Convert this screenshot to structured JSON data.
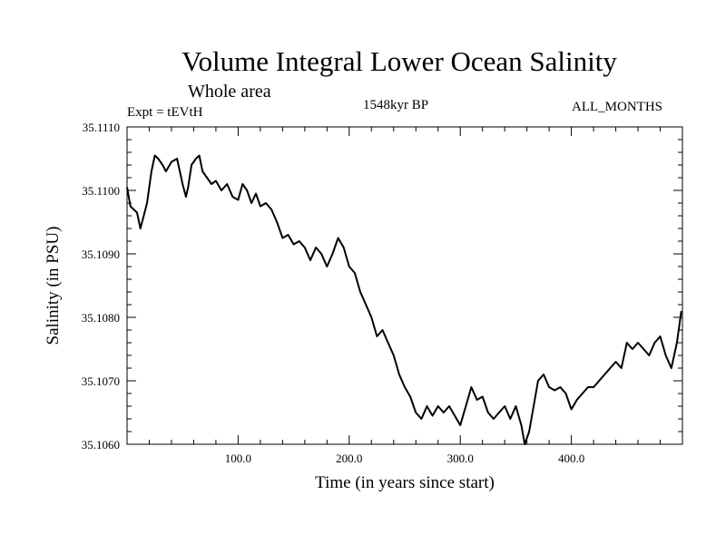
{
  "chart_data": {
    "type": "line",
    "title": "Volume Integral Lower Ocean Salinity",
    "subtitle": "Whole area",
    "experiment_label": "Expt = tEVtH",
    "date_label": "1548kyr BP",
    "period_label": "ALL_MONTHS",
    "xlabel": "Time (in years since start)",
    "ylabel": "Salinity (in PSU)",
    "xlim": [
      0,
      500
    ],
    "ylim": [
      35.106,
      35.111
    ],
    "x_ticks": [
      100,
      200,
      300,
      400
    ],
    "x_tick_labels": [
      "100.0",
      "200.0",
      "300.0",
      "400.0"
    ],
    "y_ticks": [
      35.106,
      35.107,
      35.108,
      35.109,
      35.11,
      35.111
    ],
    "y_tick_labels": [
      "35.1060",
      "35.1070",
      "35.1080",
      "35.1090",
      "35.1100",
      "35.1110"
    ],
    "series": [
      {
        "name": "Salinity",
        "x": [
          0,
          3,
          6,
          9,
          12,
          15,
          18,
          22,
          25,
          28,
          32,
          35,
          40,
          45,
          50,
          53,
          55,
          58,
          62,
          65,
          68,
          72,
          76,
          80,
          85,
          90,
          95,
          100,
          104,
          108,
          112,
          116,
          120,
          125,
          130,
          135,
          140,
          145,
          150,
          155,
          160,
          165,
          170,
          175,
          180,
          185,
          190,
          195,
          200,
          205,
          210,
          215,
          220,
          225,
          230,
          235,
          240,
          245,
          250,
          255,
          260,
          265,
          270,
          275,
          280,
          285,
          290,
          295,
          300,
          305,
          310,
          315,
          320,
          325,
          330,
          335,
          340,
          345,
          350,
          355,
          358,
          362,
          365,
          370,
          375,
          380,
          385,
          390,
          395,
          400,
          405,
          410,
          415,
          420,
          425,
          430,
          435,
          440,
          445,
          450,
          455,
          460,
          465,
          470,
          475,
          480,
          485,
          490,
          495,
          499
        ],
        "values": [
          35.11005,
          35.10975,
          35.1097,
          35.10965,
          35.1094,
          35.1096,
          35.1098,
          35.1103,
          35.11055,
          35.1105,
          35.1104,
          35.1103,
          35.11045,
          35.1105,
          35.1101,
          35.1099,
          35.11005,
          35.1104,
          35.1105,
          35.11055,
          35.1103,
          35.1102,
          35.1101,
          35.11015,
          35.11,
          35.1101,
          35.1099,
          35.10985,
          35.1101,
          35.11,
          35.1098,
          35.10995,
          35.10975,
          35.1098,
          35.1097,
          35.1095,
          35.10925,
          35.1093,
          35.10915,
          35.1092,
          35.1091,
          35.1089,
          35.1091,
          35.109,
          35.1088,
          35.109,
          35.10925,
          35.1091,
          35.1088,
          35.1087,
          35.1084,
          35.1082,
          35.108,
          35.1077,
          35.1078,
          35.1076,
          35.1074,
          35.1071,
          35.1069,
          35.10675,
          35.1065,
          35.1064,
          35.1066,
          35.10645,
          35.1066,
          35.1065,
          35.1066,
          35.10645,
          35.1063,
          35.1066,
          35.1069,
          35.1067,
          35.10675,
          35.1065,
          35.1064,
          35.1065,
          35.1066,
          35.1064,
          35.1066,
          35.1063,
          35.106,
          35.1062,
          35.1065,
          35.107,
          35.1071,
          35.1069,
          35.10685,
          35.1069,
          35.1068,
          35.10655,
          35.1067,
          35.1068,
          35.1069,
          35.1069,
          35.107,
          35.1071,
          35.1072,
          35.1073,
          35.1072,
          35.1076,
          35.1075,
          35.1076,
          35.1075,
          35.1074,
          35.1076,
          35.1077,
          35.1074,
          35.1072,
          35.1076,
          35.1081
        ]
      }
    ]
  }
}
